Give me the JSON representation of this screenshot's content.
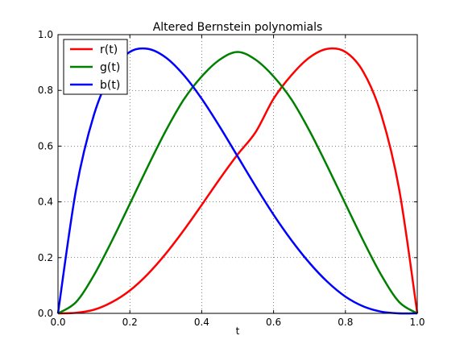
{
  "chart_data": {
    "type": "line",
    "title": "Altered Bernstein polynomials",
    "xlabel": "t",
    "ylabel": "",
    "xlim": [
      0.0,
      1.0
    ],
    "ylim": [
      0.0,
      1.0
    ],
    "xticks": [
      "0.0",
      "0.2",
      "0.4",
      "0.6",
      "0.8",
      "1.0"
    ],
    "yticks": [
      "0.0",
      "0.2",
      "0.4",
      "0.6",
      "0.8",
      "1.0"
    ],
    "grid": true,
    "legend_position": "top-left",
    "x": [
      0.0,
      0.05,
      0.1,
      0.15,
      0.2,
      0.25,
      0.3,
      0.35,
      0.4,
      0.45,
      0.5,
      0.55,
      0.6,
      0.65,
      0.7,
      0.75,
      0.8,
      0.85,
      0.9,
      0.95,
      1.0
    ],
    "series": [
      {
        "name": "r(t)",
        "color": "#ff0000",
        "values": [
          0.0,
          0.002,
          0.013,
          0.04,
          0.082,
          0.141,
          0.214,
          0.298,
          0.389,
          0.482,
          0.57,
          0.65,
          0.77,
          0.855,
          0.918,
          0.949,
          0.938,
          0.866,
          0.712,
          0.442,
          0.0
        ]
      },
      {
        "name": "g(t)",
        "color": "#008000",
        "values": [
          0.0,
          0.04,
          0.137,
          0.26,
          0.393,
          0.527,
          0.655,
          0.767,
          0.85,
          0.91,
          0.938,
          0.91,
          0.85,
          0.767,
          0.655,
          0.527,
          0.393,
          0.26,
          0.137,
          0.04,
          0.0
        ]
      },
      {
        "name": "b(t)",
        "color": "#0000ff",
        "values": [
          0.0,
          0.442,
          0.712,
          0.866,
          0.938,
          0.949,
          0.918,
          0.855,
          0.77,
          0.67,
          0.563,
          0.456,
          0.354,
          0.262,
          0.181,
          0.113,
          0.06,
          0.025,
          0.006,
          0.0,
          0.0
        ]
      }
    ]
  }
}
